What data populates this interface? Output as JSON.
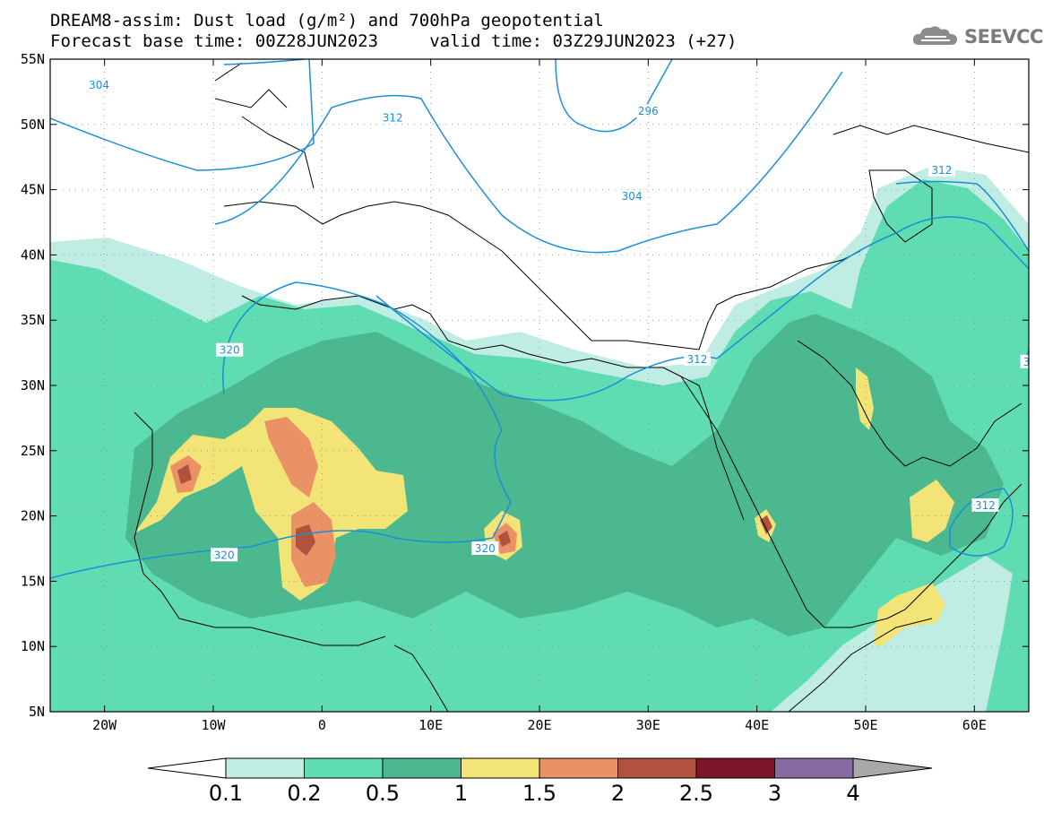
{
  "title": {
    "line1": "DREAM8-assim: Dust load (g/m²) and 700hPa geopotential",
    "line2": "Forecast base time: 00Z28JUN2023     valid time: 03Z29JUN2023 (+27)"
  },
  "logo": {
    "icon": "cloud-logo-icon",
    "text": "SEEVCCC"
  },
  "map": {
    "lon_range": [
      -25,
      65
    ],
    "lat_range": [
      5,
      55
    ],
    "lat_ticks": [
      {
        "value": 55,
        "label": "55N"
      },
      {
        "value": 50,
        "label": "50N"
      },
      {
        "value": 45,
        "label": "45N"
      },
      {
        "value": 40,
        "label": "40N"
      },
      {
        "value": 35,
        "label": "35N"
      },
      {
        "value": 30,
        "label": "30N"
      },
      {
        "value": 25,
        "label": "25N"
      },
      {
        "value": 20,
        "label": "20N"
      },
      {
        "value": 15,
        "label": "15N"
      },
      {
        "value": 10,
        "label": "10N"
      },
      {
        "value": 5,
        "label": "5N"
      }
    ],
    "lon_ticks": [
      {
        "value": -20,
        "label": "20W"
      },
      {
        "value": -10,
        "label": "10W"
      },
      {
        "value": 0,
        "label": "0"
      },
      {
        "value": 10,
        "label": "10E"
      },
      {
        "value": 20,
        "label": "20E"
      },
      {
        "value": 30,
        "label": "30E"
      },
      {
        "value": 40,
        "label": "40E"
      },
      {
        "value": 50,
        "label": "50E"
      },
      {
        "value": 60,
        "label": "60E"
      }
    ],
    "contour_color": "#1a8fd8",
    "contour_labels": [
      {
        "text": "304",
        "lon": -20.5,
        "lat": 53.0
      },
      {
        "text": "312",
        "lon": 6.5,
        "lat": 50.5
      },
      {
        "text": "296",
        "lon": 30.0,
        "lat": 51.0
      },
      {
        "text": "304",
        "lon": 28.5,
        "lat": 44.5
      },
      {
        "text": "312",
        "lon": 57.0,
        "lat": 46.5
      },
      {
        "text": "320",
        "lon": -8.5,
        "lat": 32.7
      },
      {
        "text": "312",
        "lon": 34.5,
        "lat": 32.0
      },
      {
        "text": "3",
        "lon": 64.8,
        "lat": 31.8
      },
      {
        "text": "312",
        "lon": 61.0,
        "lat": 20.8
      },
      {
        "text": "320",
        "lon": -9.0,
        "lat": 17.0
      },
      {
        "text": "320",
        "lon": 15.0,
        "lat": 17.5
      }
    ]
  },
  "colorbar": {
    "labels": [
      "0.1",
      "0.2",
      "0.5",
      "1",
      "1.5",
      "2",
      "2.5",
      "3",
      "4"
    ],
    "colors": [
      "#ffffff",
      "#bfede4",
      "#5fdcb2",
      "#4bb890",
      "#f2e476",
      "#ea9166",
      "#b0523d",
      "#7d1428",
      "#8a6aa3",
      "#a8a8a8"
    ]
  }
}
